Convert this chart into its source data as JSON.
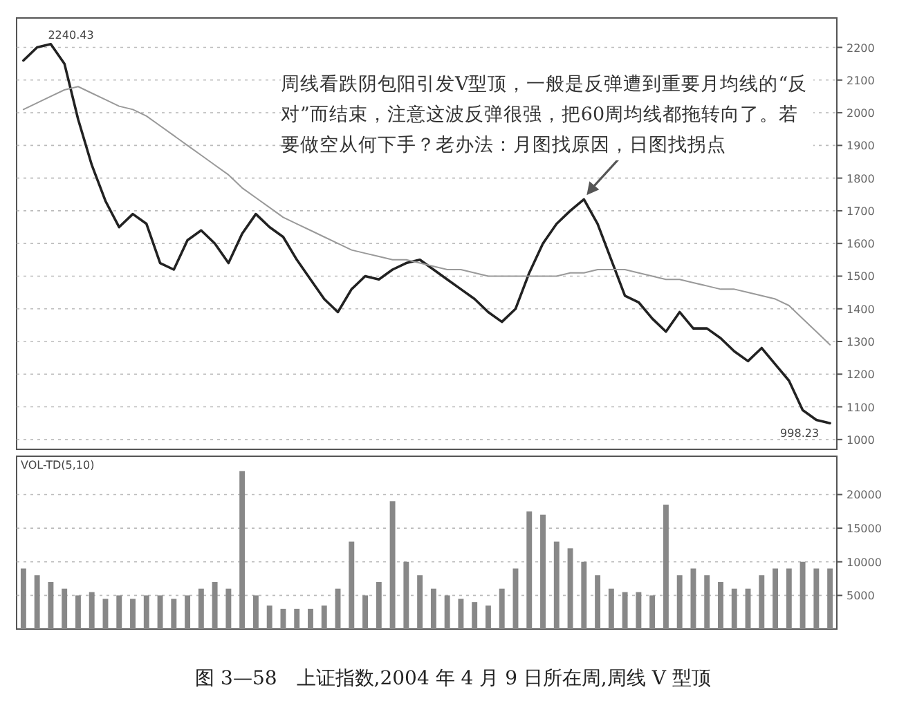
{
  "chart_data": [
    {
      "type": "line",
      "categories": [
        null,
        null,
        null,
        null,
        null,
        null,
        null,
        null,
        null,
        null,
        null,
        null,
        null,
        null,
        null,
        null,
        null,
        null,
        null,
        null,
        null,
        null,
        null,
        null,
        null,
        null,
        null,
        null,
        null,
        null,
        null,
        null,
        null,
        null,
        null,
        null,
        null,
        null,
        null,
        null,
        null,
        null,
        null,
        null,
        null,
        null,
        null,
        null,
        null,
        null,
        null,
        null,
        null,
        null,
        null,
        null,
        null,
        null,
        null,
        null
      ],
      "series": [
        {
          "color": "#222222",
          "values": [
            2160,
            2200,
            2210,
            2150,
            1980,
            1840,
            1730,
            1650,
            1690,
            1660,
            1540,
            1520,
            1610,
            1640,
            1600,
            1540,
            1630,
            1690,
            1650,
            1620,
            1550,
            1490,
            1430,
            1390,
            1460,
            1500,
            1490,
            1520,
            1540,
            1550,
            1520,
            1490,
            1460,
            1430,
            1390,
            1360,
            1400,
            1510,
            1600,
            1660,
            1700,
            1735,
            1660,
            1550,
            1440,
            1420,
            1370,
            1330,
            1390,
            1340,
            1340,
            1310,
            1270,
            1240,
            1280,
            1230,
            1180,
            1090,
            1060,
            1050
          ]
        },
        {
          "color": "#999999",
          "values": [
            2010,
            2030,
            2050,
            2070,
            2080,
            2060,
            2040,
            2020,
            2010,
            1990,
            1960,
            1930,
            1900,
            1870,
            1840,
            1810,
            1770,
            1740,
            1710,
            1680,
            1660,
            1640,
            1620,
            1600,
            1580,
            1570,
            1560,
            1550,
            1550,
            1540,
            1530,
            1520,
            1520,
            1510,
            1500,
            1500,
            1500,
            1500,
            1500,
            1500,
            1510,
            1510,
            1520,
            1520,
            1520,
            1510,
            1500,
            1490,
            1490,
            1480,
            1470,
            1460,
            1460,
            1450,
            1440,
            1430,
            1410,
            1370,
            1330,
            1290
          ]
        }
      ],
      "ylim": [
        970,
        2290
      ],
      "yticks": [
        1000,
        1100,
        1200,
        1300,
        1400,
        1500,
        1600,
        1700,
        1800,
        1900,
        2000,
        2100,
        2200
      ],
      "grid": "y",
      "annotations": [
        "2240.43",
        "998.23",
        "周线看跌阴包阳引发V型顶，一般是反弹遭到重要月均线的“反对”而结束，注意这波反弹很强，把60周均线都拖转向了。若要做空从何下手？老办法：月图找原因，日图找拐点"
      ]
    },
    {
      "type": "bar",
      "title": "VOL-TD(5,10)",
      "categories": [
        null,
        null,
        null,
        null,
        null,
        null,
        null,
        null,
        null,
        null,
        null,
        null,
        null,
        null,
        null,
        null,
        null,
        null,
        null,
        null,
        null,
        null,
        null,
        null,
        null,
        null,
        null,
        null,
        null,
        null,
        null,
        null,
        null,
        null,
        null,
        null,
        null,
        null,
        null,
        null,
        null,
        null,
        null,
        null,
        null,
        null,
        null,
        null,
        null,
        null,
        null,
        null,
        null,
        null,
        null,
        null,
        null,
        null,
        null,
        null
      ],
      "values": [
        9000,
        8000,
        7000,
        6000,
        5000,
        5500,
        4500,
        5000,
        4500,
        5000,
        5000,
        4500,
        5000,
        6000,
        7000,
        6000,
        23500,
        5000,
        3500,
        3000,
        3000,
        3000,
        3500,
        6000,
        13000,
        5000,
        7000,
        19000,
        10000,
        8000,
        6000,
        5000,
        4500,
        4000,
        3500,
        6000,
        9000,
        17500,
        17000,
        13000,
        12000,
        10000,
        8000,
        6000,
        5500,
        5500,
        5000,
        18500,
        8000,
        9000,
        8000,
        7000,
        6000,
        6000,
        8000,
        9000,
        9000,
        10000,
        9000,
        9000
      ],
      "color": "#888888",
      "ylim": [
        0,
        25700
      ],
      "yticks": [
        5000,
        10000,
        15000,
        20000
      ],
      "grid": "y",
      "annotations": [
        "图 3—58　上证指数,2004 年 4 月 9 日所在周,周线 V 型顶"
      ]
    }
  ]
}
